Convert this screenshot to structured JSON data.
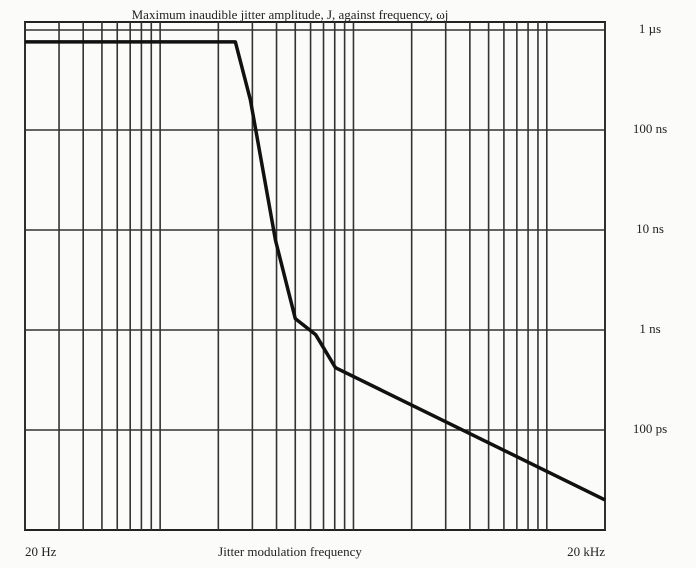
{
  "chart_data": {
    "type": "line",
    "title": "Maximum inaudible jitter amplitude, J, against frequency, ωj",
    "x_label": "Jitter modulation frequency",
    "x": [
      20,
      245,
      293,
      395,
      500,
      637,
      807,
      20000
    ],
    "series": [
      {
        "name": null,
        "color": "#111111",
        "values": [
          760,
          760,
          200,
          7.9,
          1.3,
          0.9,
          0.42,
          0.02
        ]
      }
    ],
    "xlog": true,
    "ylog": true,
    "xlim": [
      20,
      20000
    ],
    "ylim": [
      0.01,
      1000
    ],
    "xticks": [
      {
        "value": 20,
        "label": "20 Hz"
      },
      {
        "value": 20000,
        "label": "20 kHz"
      }
    ],
    "xgrid": [
      30,
      40,
      50,
      60,
      70,
      80,
      90,
      100,
      200,
      300,
      400,
      500,
      600,
      700,
      800,
      900,
      1000,
      2000,
      3000,
      4000,
      5000,
      6000,
      7000,
      8000,
      9000,
      10000
    ],
    "yticks": [
      {
        "value": 1000,
        "label": "1 µs"
      },
      {
        "value": 100,
        "label": "100 ns"
      },
      {
        "value": 10,
        "label": "10 ns"
      },
      {
        "value": 1,
        "label": "1 ns"
      },
      {
        "value": 0.1,
        "label": "100 ps"
      }
    ],
    "grid": true
  }
}
